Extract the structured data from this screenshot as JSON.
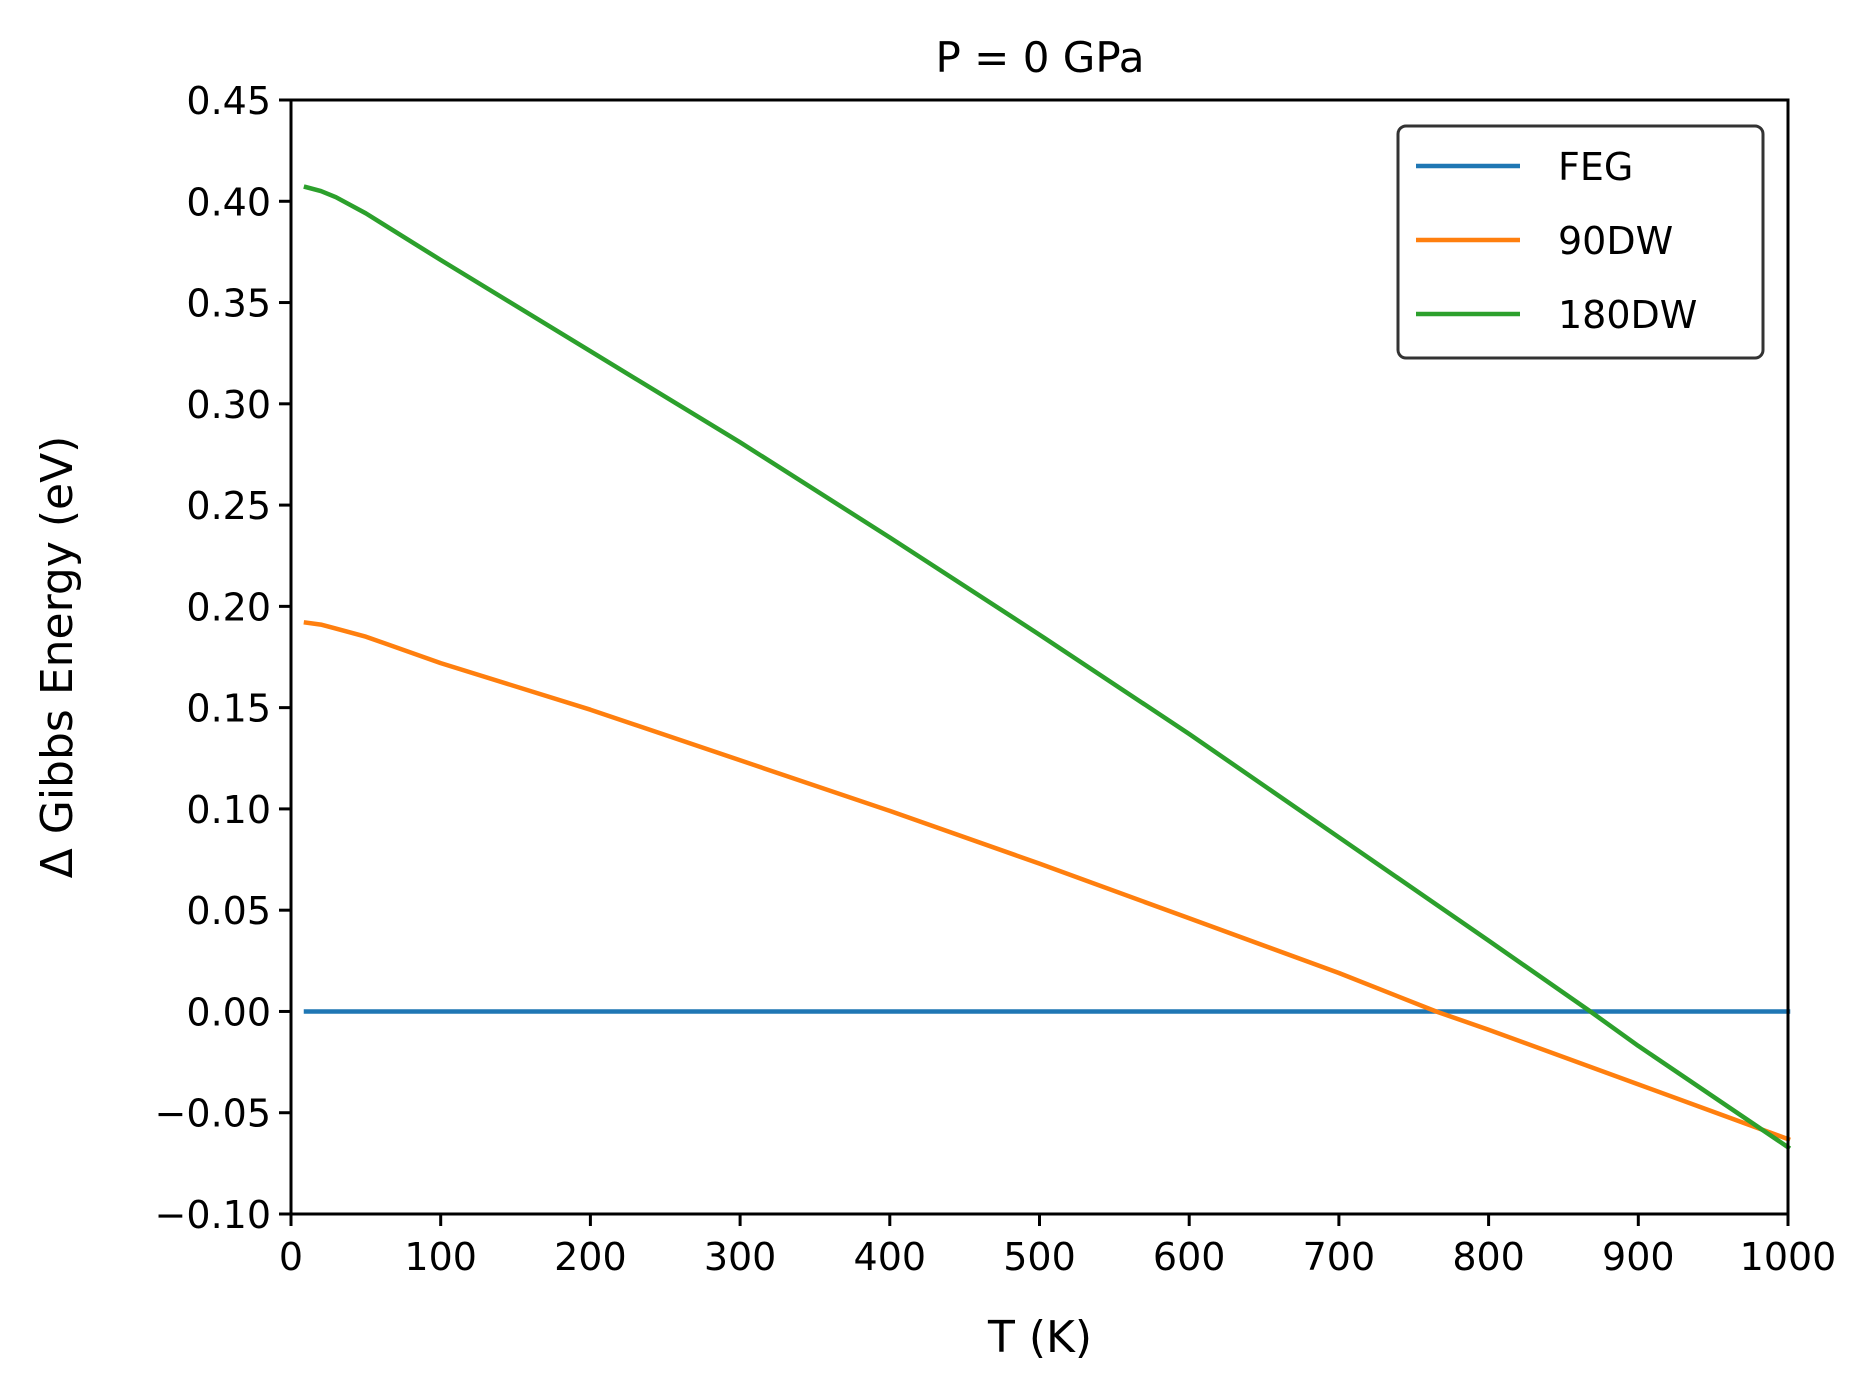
{
  "chart_data": {
    "type": "line",
    "title": "P = 0 GPa",
    "xlabel": "T (K)",
    "ylabel": "Δ Gibbs Energy (eV)",
    "xlim": [
      0,
      1000
    ],
    "ylim": [
      -0.1,
      0.45
    ],
    "xticks": [
      0,
      100,
      200,
      300,
      400,
      500,
      600,
      700,
      800,
      900,
      1000
    ],
    "xtick_labels": [
      "0",
      "100",
      "200",
      "300",
      "400",
      "500",
      "600",
      "700",
      "800",
      "900",
      "1000"
    ],
    "yticks": [
      -0.1,
      -0.05,
      0.0,
      0.05,
      0.1,
      0.15,
      0.2,
      0.25,
      0.3,
      0.35,
      0.4,
      0.45
    ],
    "ytick_labels": [
      "−0.10",
      "−0.05",
      "0.00",
      "0.05",
      "0.10",
      "0.15",
      "0.20",
      "0.25",
      "0.30",
      "0.35",
      "0.40",
      "0.45"
    ],
    "grid": false,
    "legend_position": "top-right",
    "series": [
      {
        "name": "FEG",
        "color": "#1f77b4",
        "x": [
          10,
          1000
        ],
        "y": [
          0.0,
          0.0
        ]
      },
      {
        "name": "90DW",
        "color": "#ff7f0e",
        "x": [
          10,
          20,
          30,
          50,
          100,
          200,
          300,
          400,
          500,
          600,
          700,
          765,
          800,
          900,
          1000
        ],
        "y": [
          0.192,
          0.191,
          0.189,
          0.185,
          0.172,
          0.149,
          0.124,
          0.099,
          0.073,
          0.046,
          0.019,
          0.0,
          -0.009,
          -0.036,
          -0.063
        ]
      },
      {
        "name": "180DW",
        "color": "#2ca02c",
        "x": [
          10,
          20,
          30,
          50,
          100,
          200,
          300,
          400,
          500,
          600,
          700,
          800,
          868,
          900,
          1000
        ],
        "y": [
          0.407,
          0.405,
          0.402,
          0.394,
          0.371,
          0.326,
          0.281,
          0.234,
          0.186,
          0.137,
          0.086,
          0.035,
          0.0,
          -0.017,
          -0.067
        ]
      }
    ]
  }
}
